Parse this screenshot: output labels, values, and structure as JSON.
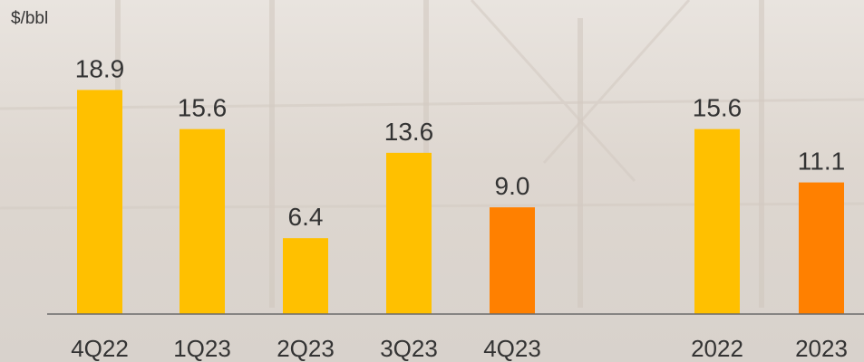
{
  "colors": {
    "bar_yellow": "#ffc000",
    "bar_orange": "#ff8000",
    "axis": "#6b6b6b",
    "text": "#333333"
  },
  "unit_label": "$/bbl",
  "chart_data": {
    "type": "bar",
    "ylabel": "$/bbl",
    "categories": [
      "4Q22",
      "1Q23",
      "2Q23",
      "3Q23",
      "4Q23",
      "2022",
      "2023"
    ],
    "values": [
      18.9,
      15.6,
      6.4,
      13.6,
      9.0,
      15.6,
      11.1
    ],
    "data_labels": [
      "18.9",
      "15.6",
      "6.4",
      "13.6",
      "9.0",
      "15.6",
      "11.1"
    ],
    "highlight": [
      false,
      false,
      false,
      false,
      true,
      false,
      true
    ],
    "ylim": [
      0,
      20
    ],
    "grid": false,
    "legend": "none"
  }
}
